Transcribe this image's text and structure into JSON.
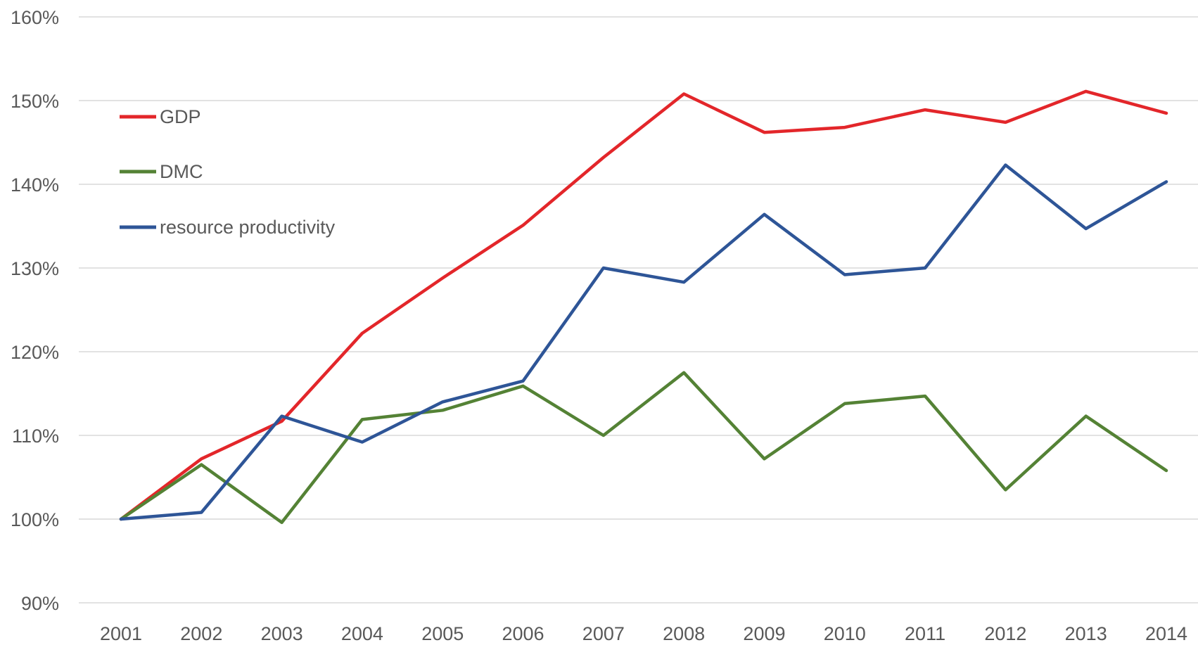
{
  "chart_data": {
    "type": "line",
    "title": "",
    "xlabel": "",
    "ylabel": "",
    "x": [
      "2001",
      "2002",
      "2003",
      "2004",
      "2005",
      "2006",
      "2007",
      "2008",
      "2009",
      "2010",
      "2011",
      "2012",
      "2013",
      "2014"
    ],
    "ylim": [
      90,
      160
    ],
    "yticks": [
      90,
      100,
      110,
      120,
      130,
      140,
      150,
      160
    ],
    "ytick_labels": [
      "90%",
      "100%",
      "110%",
      "120%",
      "130%",
      "140%",
      "150%",
      "160%"
    ],
    "grid": true,
    "legend_position": "top-left",
    "series": [
      {
        "name": "GDP",
        "color": "#e3262a",
        "values": [
          100,
          107.2,
          111.7,
          122.2,
          128.8,
          135.1,
          143.2,
          150.8,
          146.2,
          146.8,
          148.9,
          147.4,
          151.1,
          148.5
        ]
      },
      {
        "name": "DMC",
        "color": "#548235",
        "values": [
          100,
          106.5,
          99.6,
          111.9,
          113.0,
          115.9,
          110.0,
          117.5,
          107.2,
          113.8,
          114.7,
          103.5,
          112.3,
          105.8
        ]
      },
      {
        "name": "resource productivity",
        "color": "#2e5597",
        "values": [
          100,
          100.8,
          112.3,
          109.2,
          114.0,
          116.5,
          130.0,
          128.3,
          136.4,
          129.2,
          130.0,
          142.3,
          134.7,
          140.3
        ]
      }
    ]
  }
}
